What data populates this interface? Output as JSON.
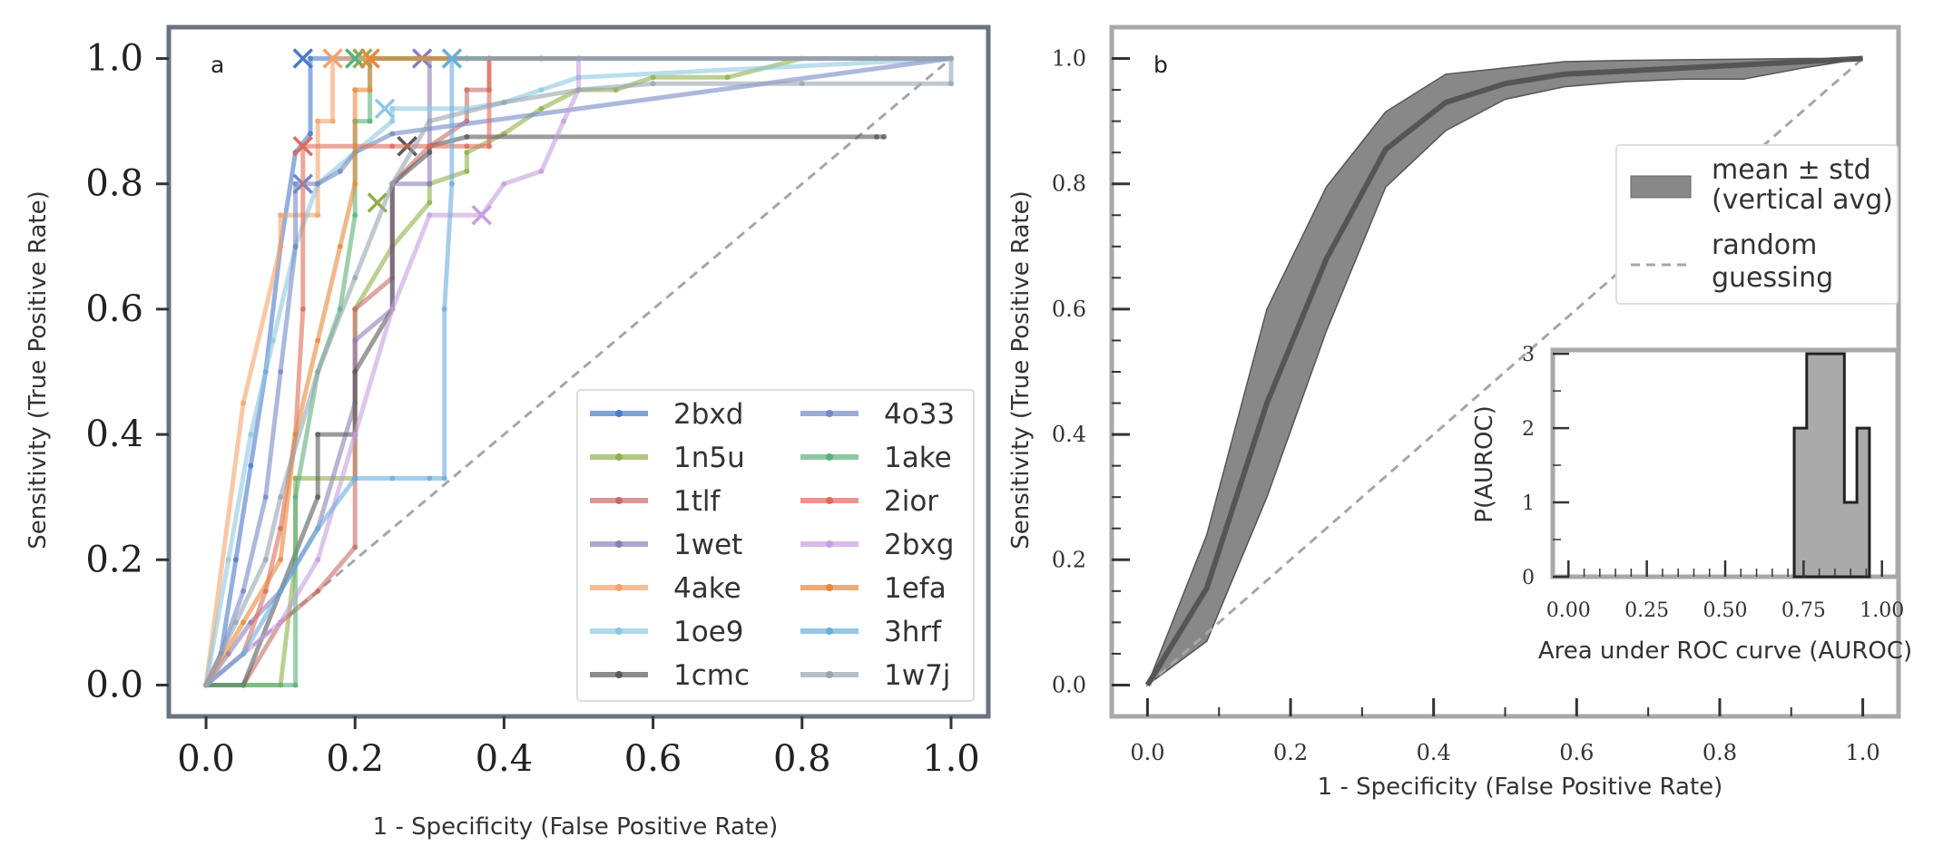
{
  "chart_data": [
    {
      "panel": "a",
      "type": "line",
      "panel_label": "a",
      "xlabel": "1 - Specificity (False Positive Rate)",
      "ylabel": "Sensitivity (True Positive Rate)",
      "xlim": [
        -0.05,
        1.05
      ],
      "ylim": [
        -0.05,
        1.05
      ],
      "xticks": [
        0.0,
        0.2,
        0.4,
        0.6,
        0.8,
        1.0
      ],
      "yticks": [
        0.0,
        0.2,
        0.4,
        0.6,
        0.8,
        1.0
      ],
      "xticklabels": [
        "0.0",
        "0.2",
        "0.4",
        "0.6",
        "0.8",
        "1.0"
      ],
      "yticklabels": [
        "0.0",
        "0.2",
        "0.4",
        "0.6",
        "0.8",
        "1.0"
      ],
      "reference_line": {
        "name": "random guessing",
        "x": [
          0,
          1
        ],
        "y": [
          0,
          1
        ],
        "color": "#a6a6a6"
      },
      "legend_position": "lower-right",
      "series": [
        {
          "name": "2bxd",
          "color": "#4a7ac9",
          "x": [
            0,
            0.02,
            0.04,
            0.06,
            0.08,
            0.1,
            0.12,
            0.14,
            0.14,
            0.2,
            0.2,
            0.3,
            0.3,
            0.35,
            0.35,
            0.38,
            0.38,
            0.45,
            0.45,
            0.5,
            0.5,
            1.0
          ],
          "y": [
            0,
            0.05,
            0.2,
            0.35,
            0.5,
            0.7,
            0.85,
            0.88,
            1.0,
            1.0,
            1.0,
            1.0,
            1.0,
            1.0,
            1.0,
            1.0,
            1.0,
            1.0,
            1.0,
            1.0,
            1.0,
            1.0
          ],
          "marker_x": [
            0.13
          ],
          "marker_y": [
            1.0
          ]
        },
        {
          "name": "1n5u",
          "color": "#8fb04a",
          "x": [
            0,
            0.1,
            0.12,
            0.12,
            0.2,
            0.2,
            0.25,
            0.3,
            0.3,
            0.35,
            0.35,
            0.4,
            0.45,
            0.5,
            0.55,
            0.6,
            0.7,
            0.8,
            0.9,
            1.0
          ],
          "y": [
            0,
            0,
            0.2,
            0.33,
            0.33,
            0.6,
            0.7,
            0.77,
            0.8,
            0.82,
            0.85,
            0.88,
            0.92,
            0.95,
            0.95,
            0.97,
            0.97,
            1.0,
            1.0,
            1.0
          ],
          "marker_x": [
            0.23,
            0.21
          ],
          "marker_y": [
            0.77,
            1.0
          ]
        },
        {
          "name": "1tlf",
          "color": "#c96b6b",
          "x": [
            0,
            0.05,
            0.1,
            0.15,
            0.2,
            0.2,
            0.25,
            0.25,
            0.3,
            0.3,
            0.35,
            0.35,
            0.38,
            0.38,
            1.0
          ],
          "y": [
            0,
            0,
            0.1,
            0.15,
            0.22,
            0.6,
            0.65,
            0.8,
            0.86,
            0.86,
            0.9,
            0.95,
            0.95,
            1.0,
            1.0
          ],
          "marker_x": [
            0.27
          ],
          "marker_y": [
            0.86
          ]
        },
        {
          "name": "1wet",
          "color": "#8d7fb8",
          "x": [
            0,
            0.03,
            0.06,
            0.1,
            0.15,
            0.2,
            0.2,
            0.25,
            0.25,
            0.3,
            0.3,
            1.0
          ],
          "y": [
            0,
            0.05,
            0.1,
            0.15,
            0.25,
            0.45,
            0.55,
            0.6,
            0.8,
            0.8,
            1.0,
            1.0
          ],
          "marker_x": [
            0.29
          ],
          "marker_y": [
            1.0
          ]
        },
        {
          "name": "4ake",
          "color": "#f5a36b",
          "x": [
            0,
            0.05,
            0.1,
            0.1,
            0.15,
            0.15,
            0.17,
            0.17,
            1.0
          ],
          "y": [
            0,
            0.45,
            0.7,
            0.75,
            0.75,
            0.9,
            0.9,
            1.0,
            1.0
          ],
          "marker_x": [
            0.17
          ],
          "marker_y": [
            1.0
          ]
        },
        {
          "name": "1oe9",
          "color": "#8ec8e0",
          "x": [
            0,
            0.03,
            0.06,
            0.09,
            0.12,
            0.15,
            0.2,
            0.25,
            0.25,
            0.3,
            0.35,
            0.4,
            0.45,
            0.5,
            1.0
          ],
          "y": [
            0,
            0.2,
            0.4,
            0.55,
            0.7,
            0.8,
            0.85,
            0.9,
            0.92,
            0.92,
            0.92,
            0.93,
            0.95,
            0.97,
            1.0
          ],
          "marker_x": [
            0.24
          ],
          "marker_y": [
            0.92
          ]
        },
        {
          "name": "1cmc",
          "color": "#5a5a5a",
          "x": [
            0,
            0.05,
            0.1,
            0.15,
            0.15,
            0.2,
            0.2,
            0.25,
            0.25,
            0.3,
            0.3,
            0.35,
            0.9,
            0.91
          ],
          "y": [
            0,
            0,
            0.15,
            0.3,
            0.4,
            0.4,
            0.5,
            0.6,
            0.8,
            0.85,
            0.86,
            0.875,
            0.875,
            0.875
          ],
          "marker_x": [
            0.27
          ],
          "marker_y": [
            0.86
          ]
        },
        {
          "name": "4o33",
          "color": "#7488c4",
          "x": [
            0,
            0.02,
            0.05,
            0.08,
            0.1,
            0.12,
            0.12,
            0.15,
            0.18,
            0.2,
            0.25,
            1.0
          ],
          "y": [
            0,
            0.05,
            0.15,
            0.3,
            0.5,
            0.7,
            0.8,
            0.8,
            0.82,
            0.85,
            0.88,
            1.0
          ],
          "marker_x": [
            0.13
          ],
          "marker_y": [
            0.8
          ]
        },
        {
          "name": "1ake",
          "color": "#5ab07a",
          "x": [
            0,
            0.12,
            0.12,
            0.15,
            0.18,
            0.2,
            0.2,
            0.22,
            0.22,
            1.0
          ],
          "y": [
            0,
            0,
            0.3,
            0.5,
            0.6,
            0.75,
            0.9,
            0.9,
            1.0,
            1.0
          ],
          "marker_x": [
            0.2
          ],
          "marker_y": [
            1.0
          ]
        },
        {
          "name": "2ior",
          "color": "#e06a5a",
          "x": [
            0,
            0.05,
            0.08,
            0.1,
            0.12,
            0.13,
            0.13,
            0.25,
            0.3,
            0.35,
            0.38,
            0.38,
            1.0
          ],
          "y": [
            0,
            0.05,
            0.15,
            0.25,
            0.4,
            0.6,
            0.86,
            0.86,
            0.86,
            0.86,
            0.86,
            1.0,
            1.0
          ],
          "marker_x": [
            0.13
          ],
          "marker_y": [
            0.86
          ]
        },
        {
          "name": "2bxg",
          "color": "#c79ee0",
          "x": [
            0,
            0.1,
            0.15,
            0.2,
            0.25,
            0.3,
            0.37,
            0.4,
            0.45,
            0.48,
            0.5,
            0.5,
            1.0
          ],
          "y": [
            0,
            0.1,
            0.2,
            0.4,
            0.6,
            0.75,
            0.75,
            0.8,
            0.82,
            0.9,
            0.95,
            1.0,
            1.0
          ],
          "marker_x": [
            0.37
          ],
          "marker_y": [
            0.75
          ]
        },
        {
          "name": "1efa",
          "color": "#e8883a",
          "x": [
            0,
            0.05,
            0.1,
            0.12,
            0.15,
            0.18,
            0.2,
            0.2,
            0.22,
            0.22,
            1.0
          ],
          "y": [
            0,
            0.1,
            0.2,
            0.4,
            0.55,
            0.7,
            0.8,
            0.95,
            0.95,
            1.0,
            1.0
          ],
          "marker_x": [
            0.22
          ],
          "marker_y": [
            1.0
          ]
        },
        {
          "name": "3hrf",
          "color": "#6aaedc",
          "x": [
            0,
            0.05,
            0.1,
            0.15,
            0.2,
            0.25,
            0.3,
            0.32,
            0.32,
            0.33,
            0.33,
            1.0
          ],
          "y": [
            0,
            0.05,
            0.15,
            0.25,
            0.33,
            0.33,
            0.33,
            0.33,
            0.6,
            0.8,
            1.0,
            1.0
          ],
          "marker_x": [
            0.33
          ],
          "marker_y": [
            1.0
          ]
        },
        {
          "name": "1w7j",
          "color": "#97a5b0",
          "x": [
            0,
            0.04,
            0.08,
            0.1,
            0.15,
            0.2,
            0.25,
            0.3,
            0.4,
            0.5,
            0.6,
            0.8,
            1.0,
            1.0
          ],
          "y": [
            0,
            0.1,
            0.2,
            0.3,
            0.5,
            0.65,
            0.8,
            0.9,
            0.93,
            0.95,
            0.96,
            0.96,
            0.96,
            1.0
          ],
          "marker_x": [],
          "marker_y": []
        }
      ]
    },
    {
      "panel": "b",
      "type": "area",
      "panel_label": "b",
      "xlabel": "1 - Specificity (False Positive Rate)",
      "ylabel": "Sensitivity (True Positive Rate)",
      "xlim": [
        -0.05,
        1.05
      ],
      "ylim": [
        -0.05,
        1.05
      ],
      "xticks": [
        0.0,
        0.2,
        0.4,
        0.6,
        0.8,
        1.0
      ],
      "yticks": [
        0.0,
        0.2,
        0.4,
        0.6,
        0.8,
        1.0
      ],
      "xticklabels": [
        "0.0",
        "0.2",
        "0.4",
        "0.6",
        "0.8",
        "1.0"
      ],
      "yticklabels": [
        "0.0",
        "0.2",
        "0.4",
        "0.6",
        "0.8",
        "1.0"
      ],
      "legend_position": "upper-right",
      "series": [
        {
          "name": "mean ± std (vertical avg)",
          "legend_lines": [
            "mean ± std",
            "(vertical avg)"
          ],
          "color": "#888888",
          "x": [
            0,
            0.083,
            0.167,
            0.25,
            0.333,
            0.417,
            0.5,
            0.583,
            0.667,
            0.75,
            0.833,
            0.917,
            1.0
          ],
          "mean": [
            0,
            0.155,
            0.45,
            0.68,
            0.855,
            0.93,
            0.96,
            0.975,
            0.98,
            0.985,
            0.99,
            0.995,
            1.0
          ],
          "upper": [
            0,
            0.24,
            0.6,
            0.795,
            0.915,
            0.975,
            0.985,
            0.995,
            0.997,
            0.998,
            0.999,
            1.0,
            1.0
          ],
          "lower": [
            0,
            0.07,
            0.3,
            0.565,
            0.795,
            0.885,
            0.935,
            0.955,
            0.963,
            0.967,
            0.967,
            0.985,
            1.0
          ]
        },
        {
          "name": "random guessing",
          "legend_lines": [
            "random",
            "guessing"
          ],
          "color": "#a6a6a6",
          "x": [
            0,
            1
          ],
          "y": [
            0,
            1
          ]
        }
      ],
      "inset": {
        "type": "bar",
        "xlabel": "Area under ROC curve (AUROC)",
        "ylabel": "P(AUROC)",
        "xlim": [
          -0.05,
          1.05
        ],
        "ylim": [
          0,
          3.05
        ],
        "xticks": [
          0.0,
          0.25,
          0.5,
          0.75,
          1.0
        ],
        "xticklabels": [
          "0.00",
          "0.25",
          "0.50",
          "0.75",
          "1.00"
        ],
        "yticks": [
          0,
          1,
          2,
          3
        ],
        "yticklabels": [
          "0",
          "1",
          "2",
          "3"
        ],
        "bin_edges": [
          0.72,
          0.76,
          0.8,
          0.84,
          0.88,
          0.92,
          0.96
        ],
        "values": [
          2,
          3,
          3,
          3,
          1,
          2
        ],
        "color": "#aaaaaa"
      }
    }
  ]
}
